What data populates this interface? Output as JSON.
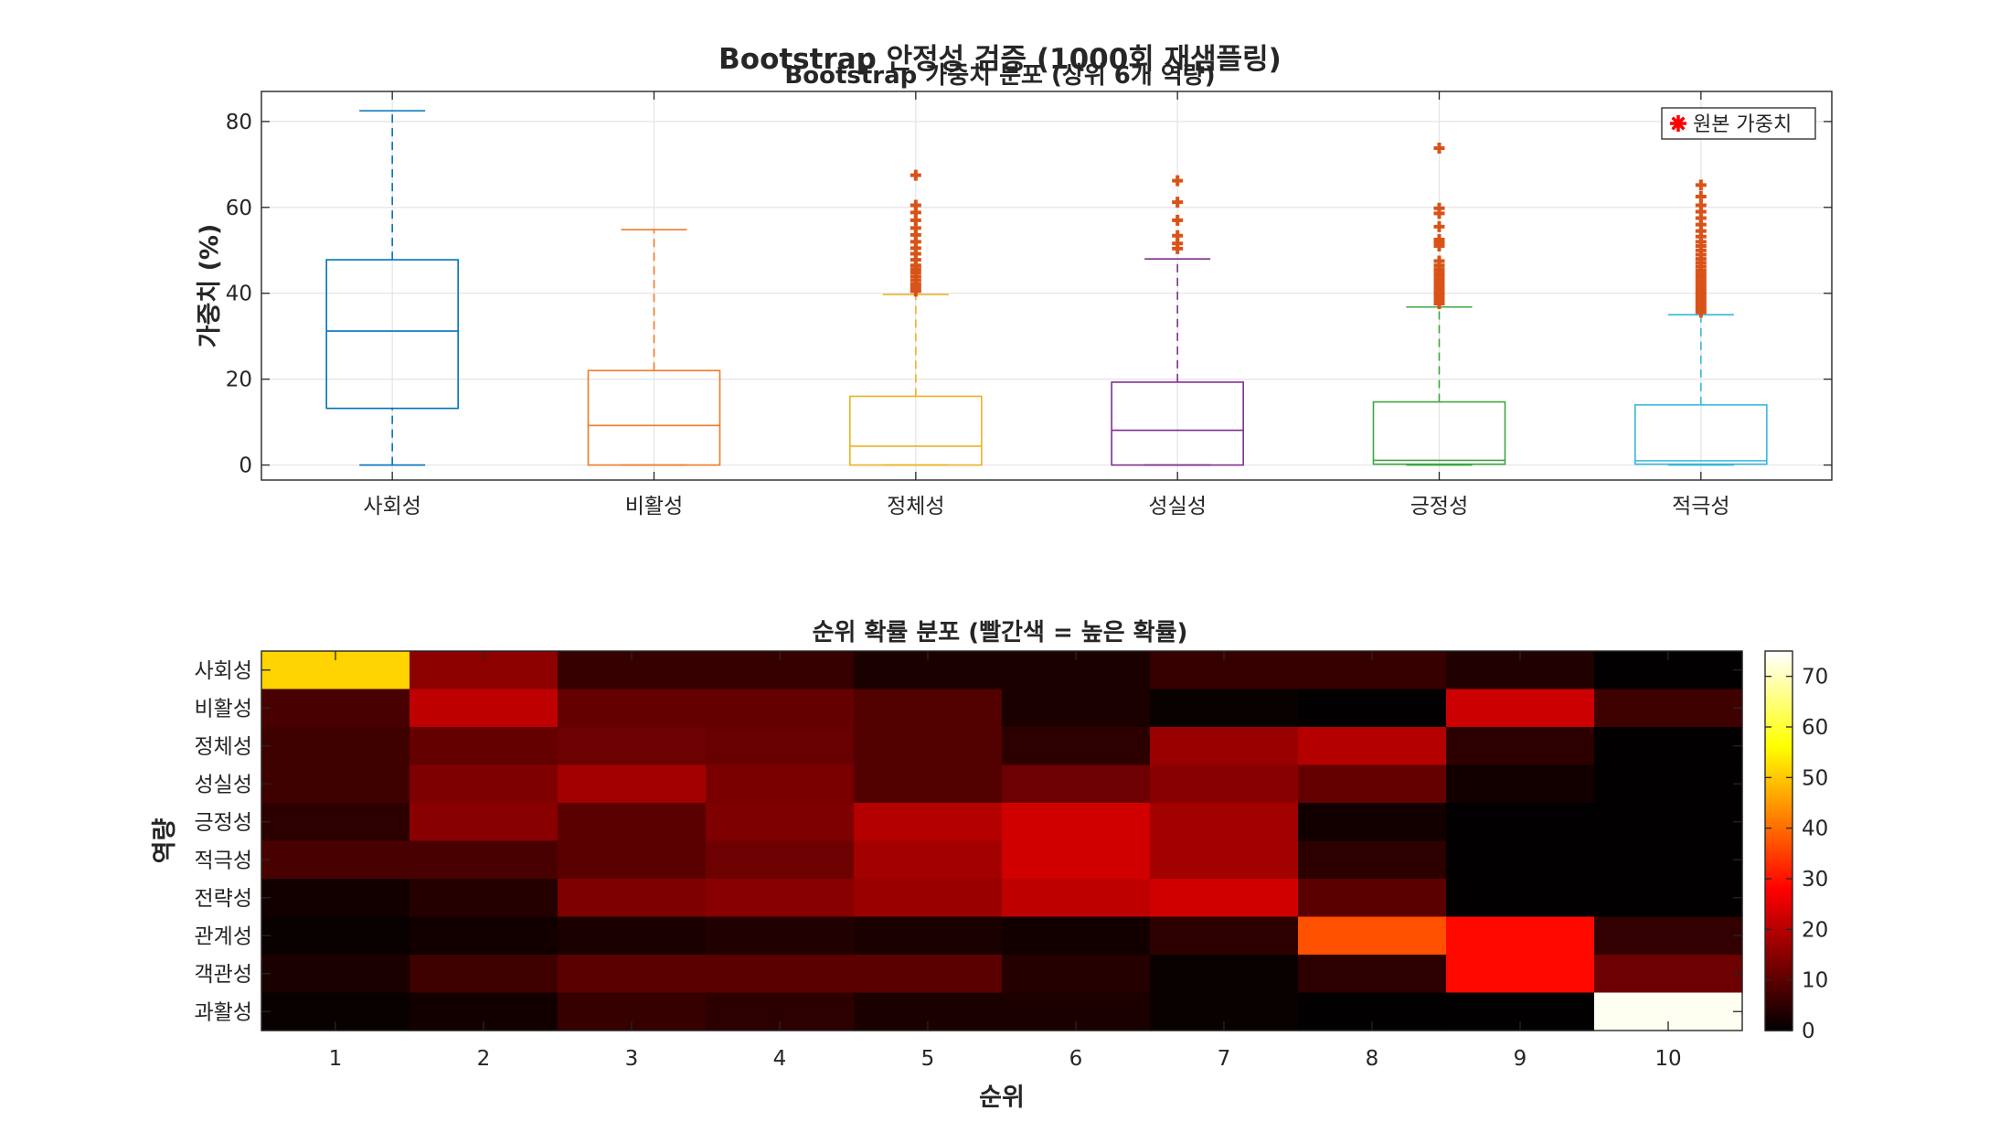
{
  "figure": {
    "suptitle": "Bootstrap 안정성 검증 (1000회 재샘플링)"
  },
  "chart_data": [
    {
      "type": "box",
      "title": "Bootstrap 가중치 분포 (상위 6개 역량)",
      "xlabel": "",
      "ylabel": "가중치 (%)",
      "ylim": [
        -3.5,
        87
      ],
      "yticks": [
        0,
        20,
        40,
        60,
        80
      ],
      "grid": true,
      "legend": {
        "entries": [
          "원본 가중치"
        ],
        "placement": "top-right",
        "marker": "red asterisk"
      },
      "categories": [
        "사회성",
        "비활성",
        "정체성",
        "성실성",
        "긍정성",
        "적극성"
      ],
      "colors": [
        "#0072bd",
        "#f07a2a",
        "#edb120",
        "#7e2f8e",
        "#3fa540",
        "#37b8d9"
      ],
      "outlier_color": "#d95319",
      "boxes": [
        {
          "min": 0,
          "q1": 13.2,
          "median": 31.2,
          "q3": 47.8,
          "max": 82.5,
          "outliers": []
        },
        {
          "min": 0,
          "q1": 0,
          "median": 9.2,
          "q3": 22.0,
          "max": 54.8,
          "outliers": []
        },
        {
          "min": 0,
          "q1": 0,
          "median": 4.4,
          "q3": 16.0,
          "max": 39.7,
          "outliers": [
            40.5,
            41.3,
            42.1,
            43.0,
            43.9,
            44.8,
            45.6,
            46.5,
            47.8,
            49.2,
            50.5,
            52.0,
            53.6,
            55.2,
            57.0,
            58.8,
            60.5,
            67.5
          ]
        },
        {
          "min": 0,
          "q1": 0,
          "median": 8.1,
          "q3": 19.3,
          "max": 48.0,
          "outliers": [
            50.4,
            51.6,
            53.4,
            57.0,
            61.2,
            66.2
          ]
        },
        {
          "min": 0,
          "q1": 0.2,
          "median": 1.1,
          "q3": 14.7,
          "max": 36.8,
          "outliers": [
            37.6,
            38.3,
            39.0,
            39.7,
            40.4,
            41.1,
            41.8,
            42.5,
            43.2,
            44.0,
            44.8,
            45.6,
            46.5,
            47.5,
            51.0,
            51.8,
            52.5,
            55.5,
            58.6,
            59.8,
            73.8
          ]
        },
        {
          "min": 0,
          "q1": 0.2,
          "median": 1.0,
          "q3": 14.0,
          "max": 35.0,
          "outliers": [
            35.6,
            36.3,
            37.0,
            37.7,
            38.4,
            39.1,
            39.8,
            40.5,
            41.3,
            42.1,
            42.9,
            43.7,
            44.5,
            45.3,
            46.2,
            47.1,
            48.0,
            49.0,
            50.0,
            51.0,
            52.0,
            53.2,
            54.5,
            56.0,
            57.5,
            59.0,
            60.5,
            62.5,
            65.2
          ]
        }
      ],
      "original_weights": []
    },
    {
      "type": "heatmap",
      "title": "순위 확률 분포 (빨간색 = 높은 확률)",
      "xlabel": "순위",
      "ylabel": "역량",
      "x": [
        1,
        2,
        3,
        4,
        5,
        6,
        7,
        8,
        9,
        10
      ],
      "y": [
        "사회성",
        "비활성",
        "정체성",
        "성실성",
        "긍정성",
        "적극성",
        "전략성",
        "관계성",
        "객관성",
        "과활성"
      ],
      "colormap": "hot",
      "clim": [
        0,
        75
      ],
      "colorbar_ticks": [
        0,
        10,
        20,
        30,
        40,
        50,
        60,
        70
      ],
      "values": [
        [
          51.5,
          15.5,
          6.0,
          6.0,
          3.0,
          3.0,
          6.0,
          6.0,
          3.5,
          0.2
        ],
        [
          8.0,
          21.0,
          11.0,
          11.0,
          9.0,
          3.0,
          1.0,
          0.2,
          22.5,
          7.0
        ],
        [
          7.0,
          11.0,
          12.0,
          11.5,
          9.0,
          5.0,
          17.0,
          20.0,
          5.0,
          0.2
        ],
        [
          7.0,
          14.0,
          18.0,
          13.5,
          9.0,
          12.0,
          15.0,
          11.0,
          2.0,
          0.2
        ],
        [
          5.0,
          15.0,
          10.0,
          14.0,
          20.0,
          23.0,
          18.0,
          2.0,
          0.2,
          0.2
        ],
        [
          8.0,
          8.0,
          10.0,
          12.0,
          18.0,
          23.0,
          18.0,
          5.0,
          0.2,
          0.2
        ],
        [
          2.0,
          4.0,
          14.0,
          15.0,
          17.0,
          21.0,
          23.0,
          10.0,
          0.2,
          0.2
        ],
        [
          1.0,
          2.0,
          3.0,
          3.5,
          3.0,
          2.0,
          5.0,
          37.0,
          29.0,
          5.5
        ],
        [
          3.0,
          7.0,
          10.0,
          10.0,
          10.0,
          4.0,
          1.0,
          5.0,
          29.0,
          12.0
        ],
        [
          1.0,
          2.0,
          6.0,
          5.0,
          3.0,
          3.0,
          1.0,
          0.2,
          0.2,
          74.0
        ]
      ]
    }
  ]
}
